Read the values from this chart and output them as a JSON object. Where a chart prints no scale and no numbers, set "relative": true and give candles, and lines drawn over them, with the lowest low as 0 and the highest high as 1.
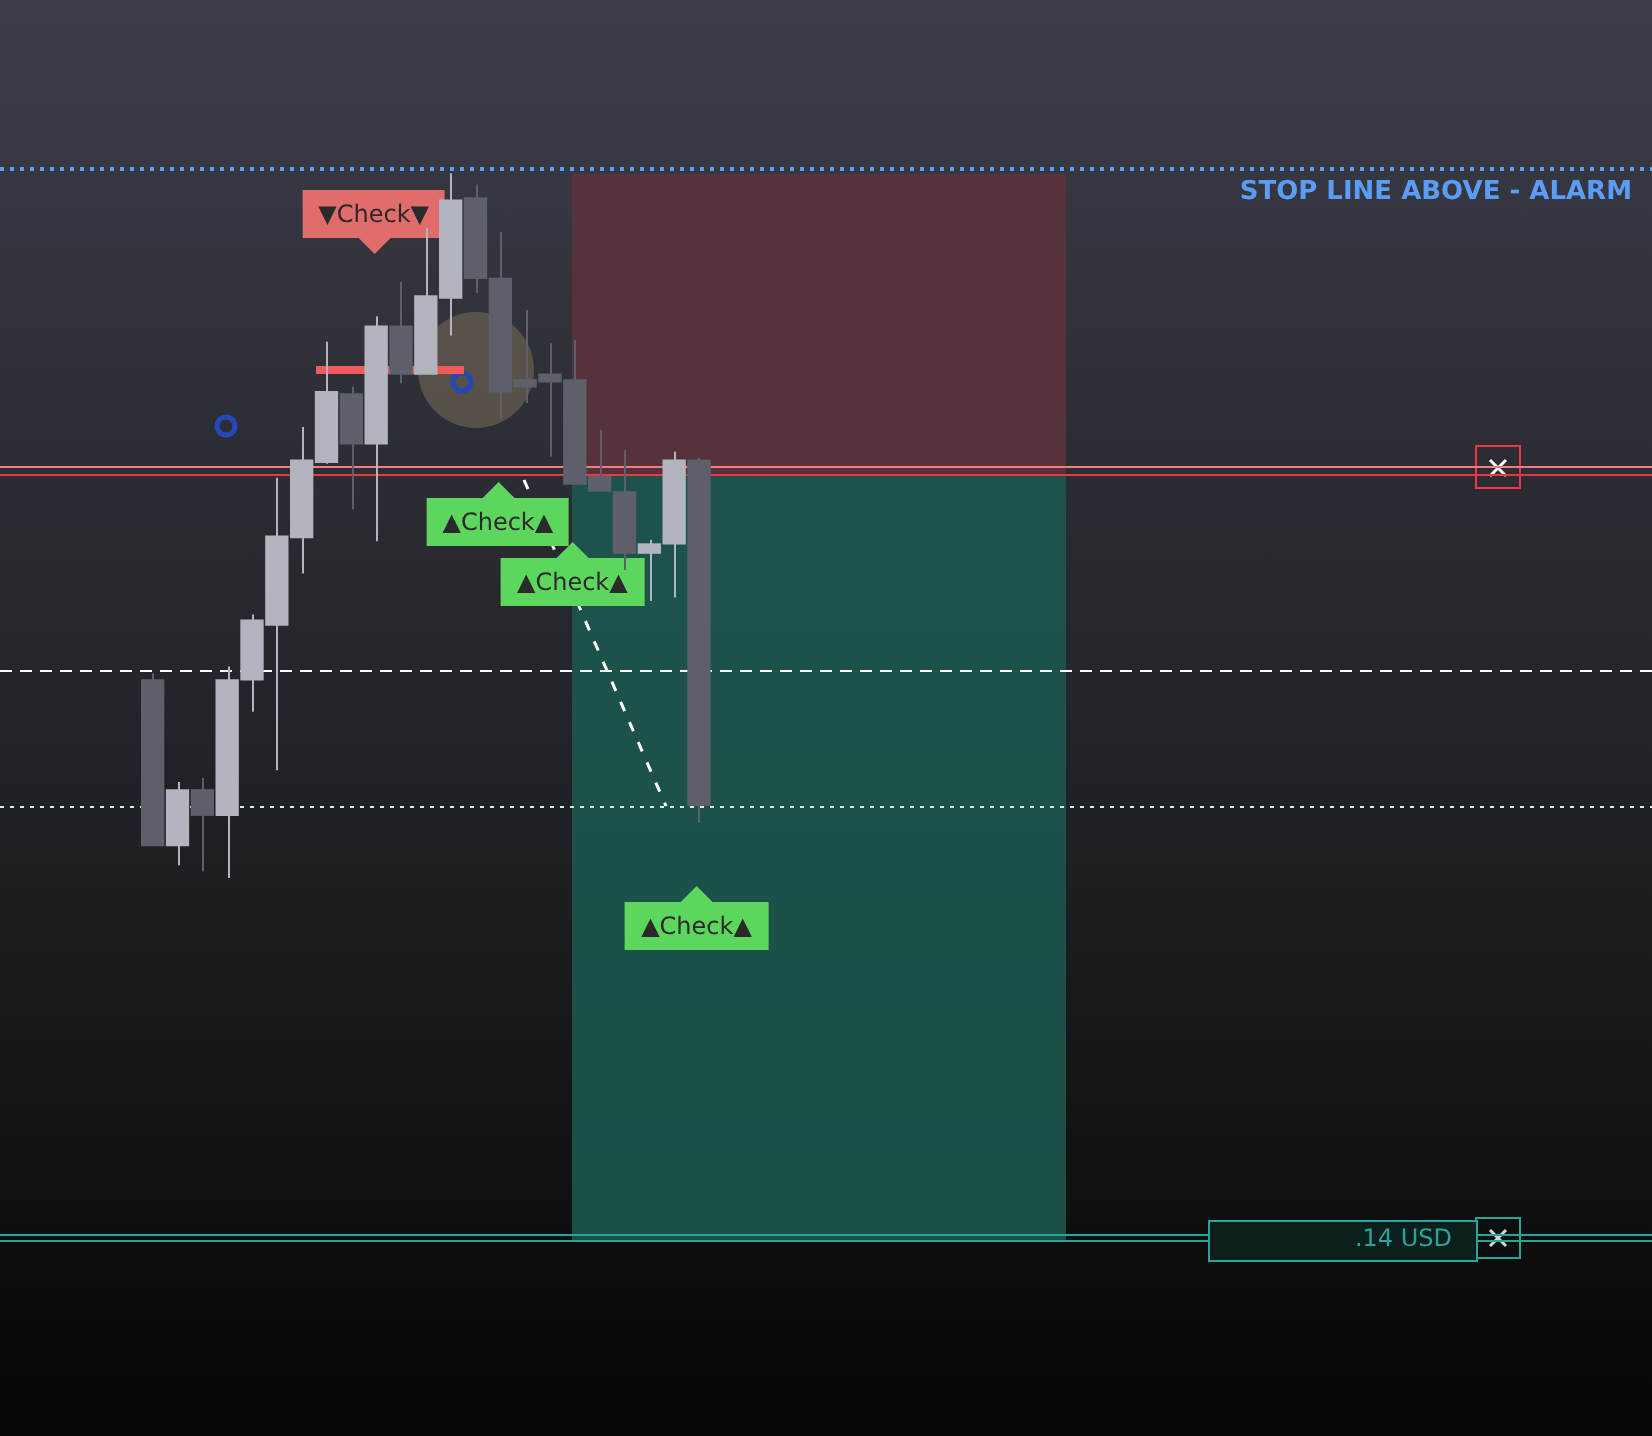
{
  "chart_data": {
    "type": "candlestick",
    "relative": true,
    "categories": [
      null,
      null,
      null,
      null,
      null,
      null,
      null,
      null,
      null,
      null,
      null,
      null,
      null,
      null,
      null,
      null,
      null,
      null,
      null,
      null,
      null,
      null,
      null
    ],
    "ohlc": [
      [
        0.281,
        0.29,
        0.046,
        0.046
      ],
      [
        0.046,
        0.136,
        0.018,
        0.125
      ],
      [
        0.125,
        0.142,
        0.009,
        0.089
      ],
      [
        0.089,
        0.3,
        0,
        0.281
      ],
      [
        0.281,
        0.374,
        0.236,
        0.366
      ],
      [
        0.359,
        0.568,
        0.153,
        0.485
      ],
      [
        0.483,
        0.64,
        0.432,
        0.593
      ],
      [
        0.59,
        0.761,
        0.588,
        0.69
      ],
      [
        0.687,
        0.697,
        0.523,
        0.616
      ],
      [
        0.616,
        0.797,
        0.478,
        0.783
      ],
      [
        0.783,
        0.846,
        0.702,
        0.715
      ],
      [
        0.715,
        0.922,
        0.715,
        0.826
      ],
      [
        0.823,
        1,
        0.77,
        0.962
      ],
      [
        0.965,
        0.984,
        0.83,
        0.851
      ],
      [
        0.851,
        0.917,
        0.65,
        0.69
      ],
      [
        0.707,
        0.806,
        0.674,
        0.697
      ],
      [
        0.715,
        0.759,
        0.598,
        0.704
      ],
      [
        0.707,
        0.763,
        0.559,
        0.559
      ],
      [
        0.57,
        0.636,
        0.549,
        0.549
      ],
      [
        0.548,
        0.607,
        0.437,
        0.461
      ],
      [
        0.461,
        0.48,
        0.393,
        0.474
      ],
      [
        0.474,
        0.605,
        0.398,
        0.593
      ],
      [
        0.593,
        0.596,
        0.078,
        0.103
      ]
    ],
    "colors": [
      "#5d606b",
      "#b2b5be",
      "#5d606b",
      "#b2b5be",
      "#b2b5be",
      "#b2b5be",
      "#b2b5be",
      "#b2b5be",
      "#5d606b",
      "#b2b5be",
      "#5d606b",
      "#b2b5be",
      "#b2b5be",
      "#5d606b",
      "#5d606b",
      "#5d606b",
      "#5d606b",
      "#5d606b",
      "#5d606b",
      "#5d606b",
      "#b2b5be",
      "#b2b5be",
      "#5d606b"
    ],
    "ref_lines": [
      {
        "axis": "y",
        "value": 1.008,
        "label": "STOP LINE ABOVE - ALARM",
        "color": "#5b9cf6",
        "line_style": "dotted"
      },
      {
        "axis": "y",
        "value": 0.585,
        "color": "#f77c80",
        "line_style": "solid"
      },
      {
        "axis": "y",
        "value": 0.573,
        "color": "#f23645",
        "line_style": "solid"
      },
      {
        "axis": "y",
        "value": 0.295,
        "color": "#ffffff",
        "line_style": "dashed"
      },
      {
        "axis": "y",
        "value": 0.102,
        "color": "#d8f0d8",
        "line_style": "dotted"
      },
      {
        "axis": "y",
        "value": -0.505,
        "color": "#26a69a",
        "line_style": "solid"
      },
      {
        "axis": "y",
        "value": -0.514,
        "label": ".14 USD",
        "color": "#26a69a",
        "line_style": "solid"
      }
    ],
    "bands": [
      {
        "axis": "y",
        "from": 0.573,
        "to": 0.999,
        "color": "#5e333c"
      },
      {
        "axis": "y",
        "from": -0.514,
        "to": 0.573,
        "color": "#1c5a50"
      }
    ],
    "annotations": [
      "▼Check▼",
      "▲Check▲",
      "▲Check▲",
      "▲Check▲"
    ]
  }
}
